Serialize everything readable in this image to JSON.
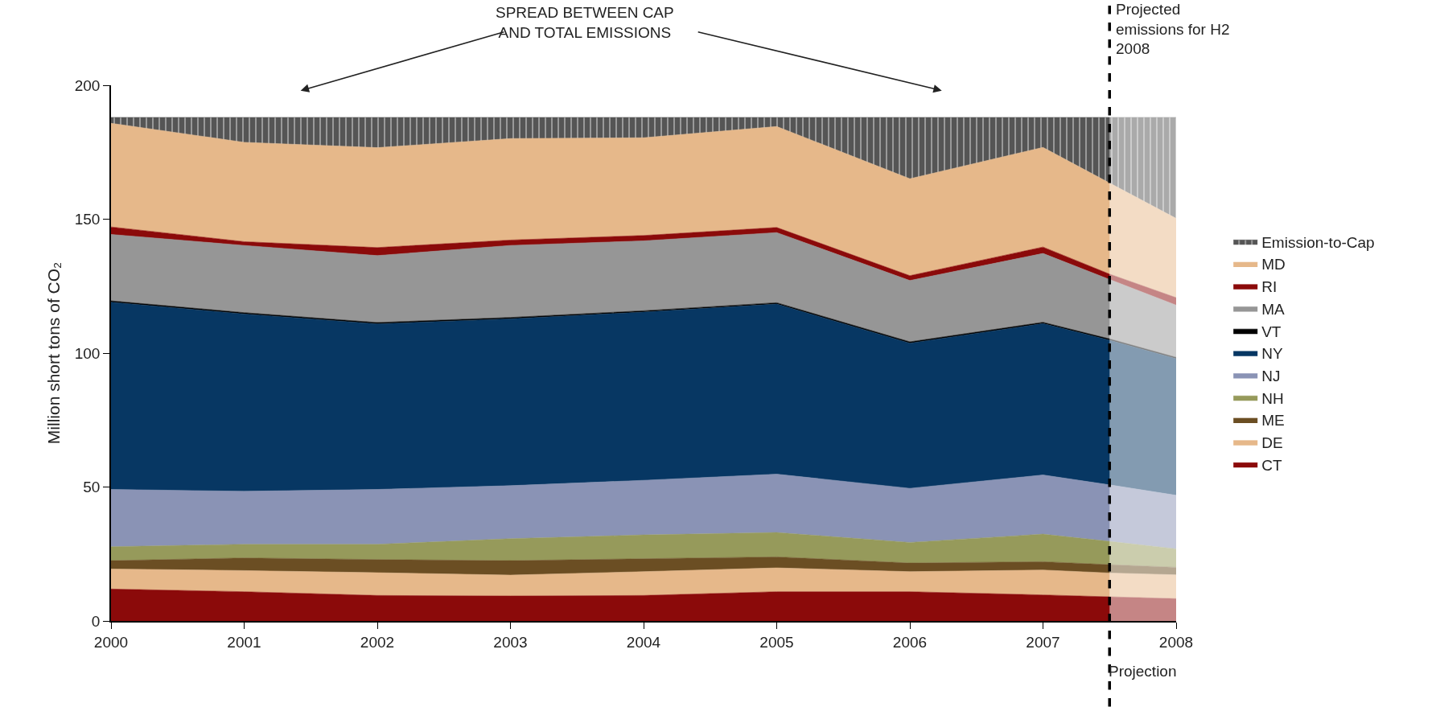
{
  "chart_data": {
    "type": "area",
    "stacked": true,
    "annotations": [
      "SPREAD BETWEEN CAP\nAND TOTAL EMISSIONS"
    ],
    "ylabel": "Million short tons of CO₂",
    "x": [
      2000,
      2001,
      2002,
      2003,
      2004,
      2005,
      2006,
      2007,
      2007.5,
      2008
    ],
    "xlim": [
      2000,
      2008
    ],
    "xticks": [
      2000,
      2001,
      2002,
      2003,
      2004,
      2005,
      2006,
      2007,
      2008
    ],
    "ylim": [
      0,
      200
    ],
    "yticks": [
      0,
      50,
      100,
      150,
      200
    ],
    "legend": "right",
    "series": [
      {
        "name": "CT",
        "color": "#8b0a0a",
        "values": [
          11.9,
          10.9,
          9.5,
          9.3,
          9.5,
          10.9,
          10.9,
          9.7,
          9.0,
          8.3
        ]
      },
      {
        "name": "DE",
        "color": "#e6b88a",
        "values": [
          7.5,
          7.9,
          8.5,
          7.8,
          8.9,
          8.9,
          7.5,
          9.3,
          8.9,
          8.9
        ]
      },
      {
        "name": "ME",
        "color": "#6b4e23",
        "values": [
          3.1,
          4.7,
          4.9,
          5.4,
          4.8,
          4.1,
          3.2,
          3.1,
          3.1,
          2.8
        ]
      },
      {
        "name": "NH",
        "color": "#969a5b",
        "values": [
          5.2,
          5.1,
          5.7,
          8.2,
          8.9,
          9.1,
          7.7,
          10.3,
          8.7,
          6.9
        ]
      },
      {
        "name": "NJ",
        "color": "#8a93b5",
        "values": [
          21.4,
          19.8,
          20.5,
          19.8,
          20.4,
          21.8,
          20.2,
          22.1,
          21.1,
          20.0
        ]
      },
      {
        "name": "NY",
        "color": "#073763",
        "values": [
          69.9,
          66.2,
          61.8,
          62.3,
          62.8,
          63.5,
          54.2,
          56.5,
          54.0,
          51.0
        ]
      },
      {
        "name": "VT",
        "color": "#000000",
        "values": [
          0.5,
          0.5,
          0.5,
          0.5,
          0.5,
          0.5,
          0.5,
          0.5,
          0.5,
          0.5
        ]
      },
      {
        "name": "MA",
        "color": "#969696",
        "values": [
          24.8,
          25.1,
          25.0,
          26.9,
          26.1,
          26.2,
          22.9,
          25.7,
          22.2,
          19.5
        ]
      },
      {
        "name": "RI",
        "color": "#8b0a0a",
        "values": [
          2.8,
          1.4,
          3.0,
          2.0,
          2.0,
          1.9,
          1.8,
          2.4,
          2.0,
          2.8
        ]
      },
      {
        "name": "MD",
        "color": "#e6b88a",
        "values": [
          38.7,
          37.1,
          37.3,
          37.9,
          36.5,
          37.7,
          36.2,
          37.2,
          34.0,
          29.6
        ]
      },
      {
        "name": "Emission-to-Cap",
        "color": "#555555",
        "values": [
          2.2,
          9.3,
          11.3,
          7.9,
          7.6,
          3.4,
          22.9,
          11.2,
          24.5,
          37.7
        ]
      }
    ],
    "ref_lines": [
      {
        "axis": "x",
        "value": 2007.5,
        "label": "Projected\nemissions for H2\n2008",
        "line_style": "dashed",
        "color": "#000000"
      }
    ],
    "bands": [
      {
        "axis": "x",
        "from": 2007.5,
        "to": 2008,
        "label": "Projection",
        "color": "#ffffff"
      }
    ]
  }
}
